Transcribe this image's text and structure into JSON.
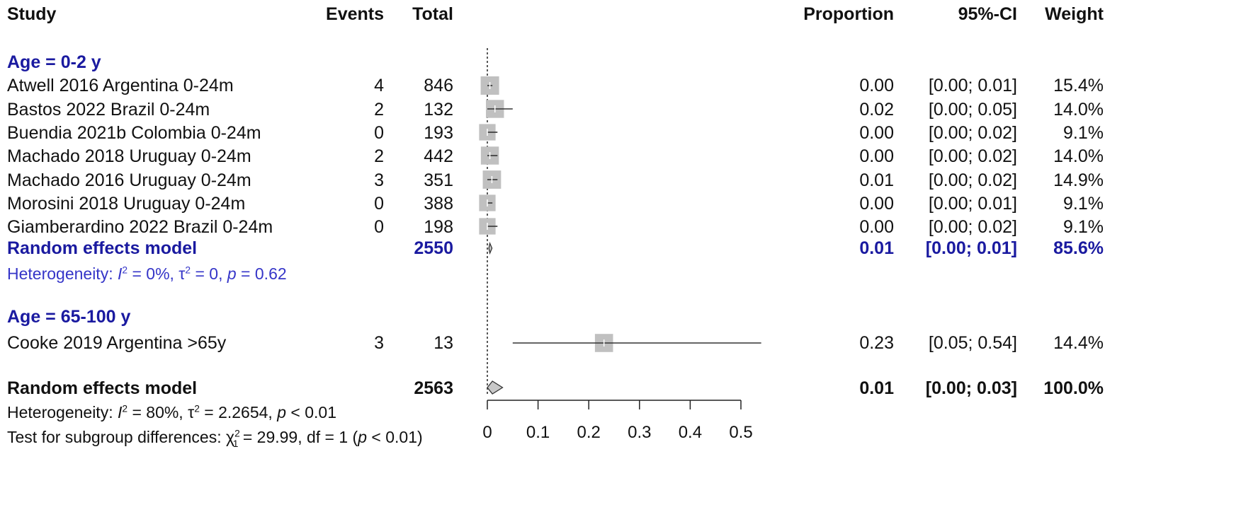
{
  "headers": {
    "study": "Study",
    "events": "Events",
    "total": "Total",
    "proportion": "Proportion",
    "ci": "95%-CI",
    "weight": "Weight"
  },
  "subgroups": [
    {
      "label": "Age = 0-2 y",
      "studies": [
        {
          "study": "Atwell 2016 Argentina 0-24m",
          "events": "4",
          "total": "846",
          "proportion": "0.00",
          "ci": "[0.00; 0.01]",
          "weight": "15.4%"
        },
        {
          "study": "Bastos 2022 Brazil 0-24m",
          "events": "2",
          "total": "132",
          "proportion": "0.02",
          "ci": "[0.00; 0.05]",
          "weight": "14.0%"
        },
        {
          "study": "Buendia 2021b Colombia 0-24m",
          "events": "0",
          "total": "193",
          "proportion": "0.00",
          "ci": "[0.00; 0.02]",
          "weight": "9.1%"
        },
        {
          "study": "Machado 2018 Uruguay 0-24m",
          "events": "2",
          "total": "442",
          "proportion": "0.00",
          "ci": "[0.00; 0.02]",
          "weight": "14.0%"
        },
        {
          "study": "Machado 2016 Uruguay 0-24m",
          "events": "3",
          "total": "351",
          "proportion": "0.01",
          "ci": "[0.00; 0.02]",
          "weight": "14.9%"
        },
        {
          "study": "Morosini 2018 Uruguay 0-24m",
          "events": "0",
          "total": "388",
          "proportion": "0.00",
          "ci": "[0.00; 0.01]",
          "weight": "9.1%"
        },
        {
          "study": "Giamberardino 2022 Brazil 0-24m",
          "events": "0",
          "total": "198",
          "proportion": "0.00",
          "ci": "[0.00; 0.02]",
          "weight": "9.1%"
        }
      ],
      "model": {
        "label": "Random effects model",
        "total": "2550",
        "proportion": "0.01",
        "ci": "[0.00; 0.01]",
        "weight": "85.6%"
      },
      "heterogeneity": {
        "prefix": "Heterogeneity: ",
        "i2_sym": "I",
        "i2": " = 0%, ",
        "tau2_sym": "τ",
        "tau2": " = 0, ",
        "p_sym": "p",
        "p": " = 0.62"
      }
    },
    {
      "label": "Age = 65-100 y",
      "studies": [
        {
          "study": "Cooke 2019 Argentina >65y",
          "events": "3",
          "total": "13",
          "proportion": "0.23",
          "ci": "[0.05; 0.54]",
          "weight": "14.4%"
        }
      ]
    }
  ],
  "overall": {
    "label": "Random effects model",
    "total": "2563",
    "proportion": "0.01",
    "ci": "[0.00; 0.03]",
    "weight": "100.0%"
  },
  "overall_heterogeneity": {
    "prefix": "Heterogeneity: ",
    "i2_sym": "I",
    "i2": " = 80%, ",
    "tau2_sym": "τ",
    "tau2": " = 2.2654, ",
    "p_sym": "p",
    "p": " < 0.01"
  },
  "subgroup_test": {
    "prefix": "Test for subgroup differences: ",
    "chi_sym": "χ",
    "chi_sub": "1",
    "rest": " = 29.99, df = 1 (",
    "p_sym": "p",
    "p": " < 0.01)"
  },
  "colors": {
    "square": "#c0c0c0",
    "line": "#333333",
    "subgroup_text": "#1a1aa0",
    "het_text": "#3535c8",
    "diamond_fill": "#c8c8c8"
  },
  "chart_data": {
    "type": "forest",
    "x_ticks": [
      "0",
      "0.1",
      "0.2",
      "0.3",
      "0.4",
      "0.5"
    ],
    "xlim": [
      0,
      0.5
    ],
    "reference_line": 0,
    "studies": [
      {
        "study": "Atwell 2016 Argentina 0-24m",
        "est": 0.005,
        "lo": 0.0,
        "hi": 0.01,
        "weight": 15.4
      },
      {
        "study": "Bastos 2022 Brazil 0-24m",
        "est": 0.015,
        "lo": 0.0,
        "hi": 0.05,
        "weight": 14.0
      },
      {
        "study": "Buendia 2021b Colombia 0-24m",
        "est": 0.0,
        "lo": 0.0,
        "hi": 0.02,
        "weight": 9.1
      },
      {
        "study": "Machado 2018 Uruguay 0-24m",
        "est": 0.005,
        "lo": 0.0,
        "hi": 0.02,
        "weight": 14.0
      },
      {
        "study": "Machado 2016 Uruguay 0-24m",
        "est": 0.009,
        "lo": 0.0,
        "hi": 0.02,
        "weight": 14.9
      },
      {
        "study": "Morosini 2018 Uruguay 0-24m",
        "est": 0.0,
        "lo": 0.0,
        "hi": 0.01,
        "weight": 9.1
      },
      {
        "study": "Giamberardino 2022 Brazil 0-24m",
        "est": 0.0,
        "lo": 0.0,
        "hi": 0.02,
        "weight": 9.1
      },
      {
        "study": "Cooke 2019 Argentina >65y",
        "est": 0.23,
        "lo": 0.05,
        "hi": 0.54,
        "weight": 14.4
      }
    ],
    "summaries": [
      {
        "label": "Random effects model (Age = 0-2 y)",
        "est": 0.005,
        "lo": 0.003,
        "hi": 0.008
      },
      {
        "label": "Random effects model (overall)",
        "est": 0.01,
        "lo": 0.0,
        "hi": 0.03
      }
    ]
  }
}
